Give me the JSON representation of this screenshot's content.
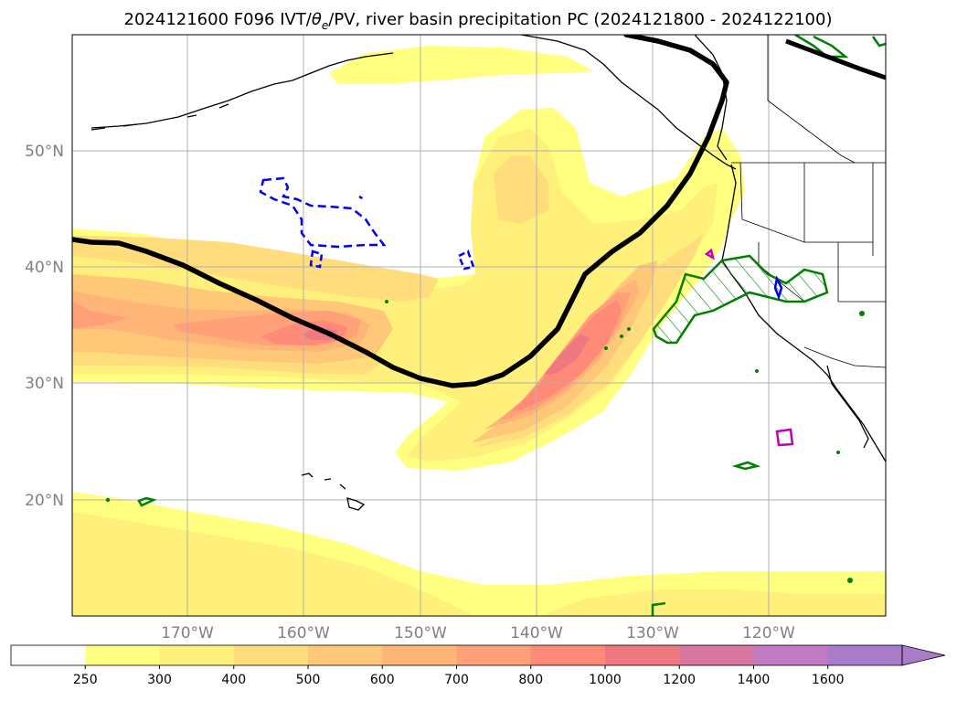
{
  "title_prefix": "2024121600 F096 IVT/",
  "title_symbol": "θ",
  "title_subscript": "e",
  "title_suffix": "/PV, river basin precipitation PC (2024121800 - 2024122100)",
  "latitude_labels": [
    "50°N",
    "40°N",
    "30°N",
    "20°N"
  ],
  "longitude_labels": [
    "170°W",
    "160°W",
    "150°W",
    "140°W",
    "130°W",
    "120°W"
  ],
  "colorbar": {
    "ticks": [
      "250",
      "300",
      "400",
      "500",
      "600",
      "700",
      "800",
      "1000",
      "1200",
      "1400",
      "1600"
    ],
    "colors": [
      "#ffffff",
      "#ffff80",
      "#fff07c",
      "#ffdc7c",
      "#ffc878",
      "#ffb478",
      "#ffa078",
      "#ff8a78",
      "#f07880",
      "#d878a0",
      "#c07cc0",
      "#a87cc8"
    ]
  },
  "legend_colors": {
    "pv_line": "#000000",
    "green_contour": "#008000",
    "blue_dashed": "#0000ee",
    "magenta": "#c000c0"
  }
}
